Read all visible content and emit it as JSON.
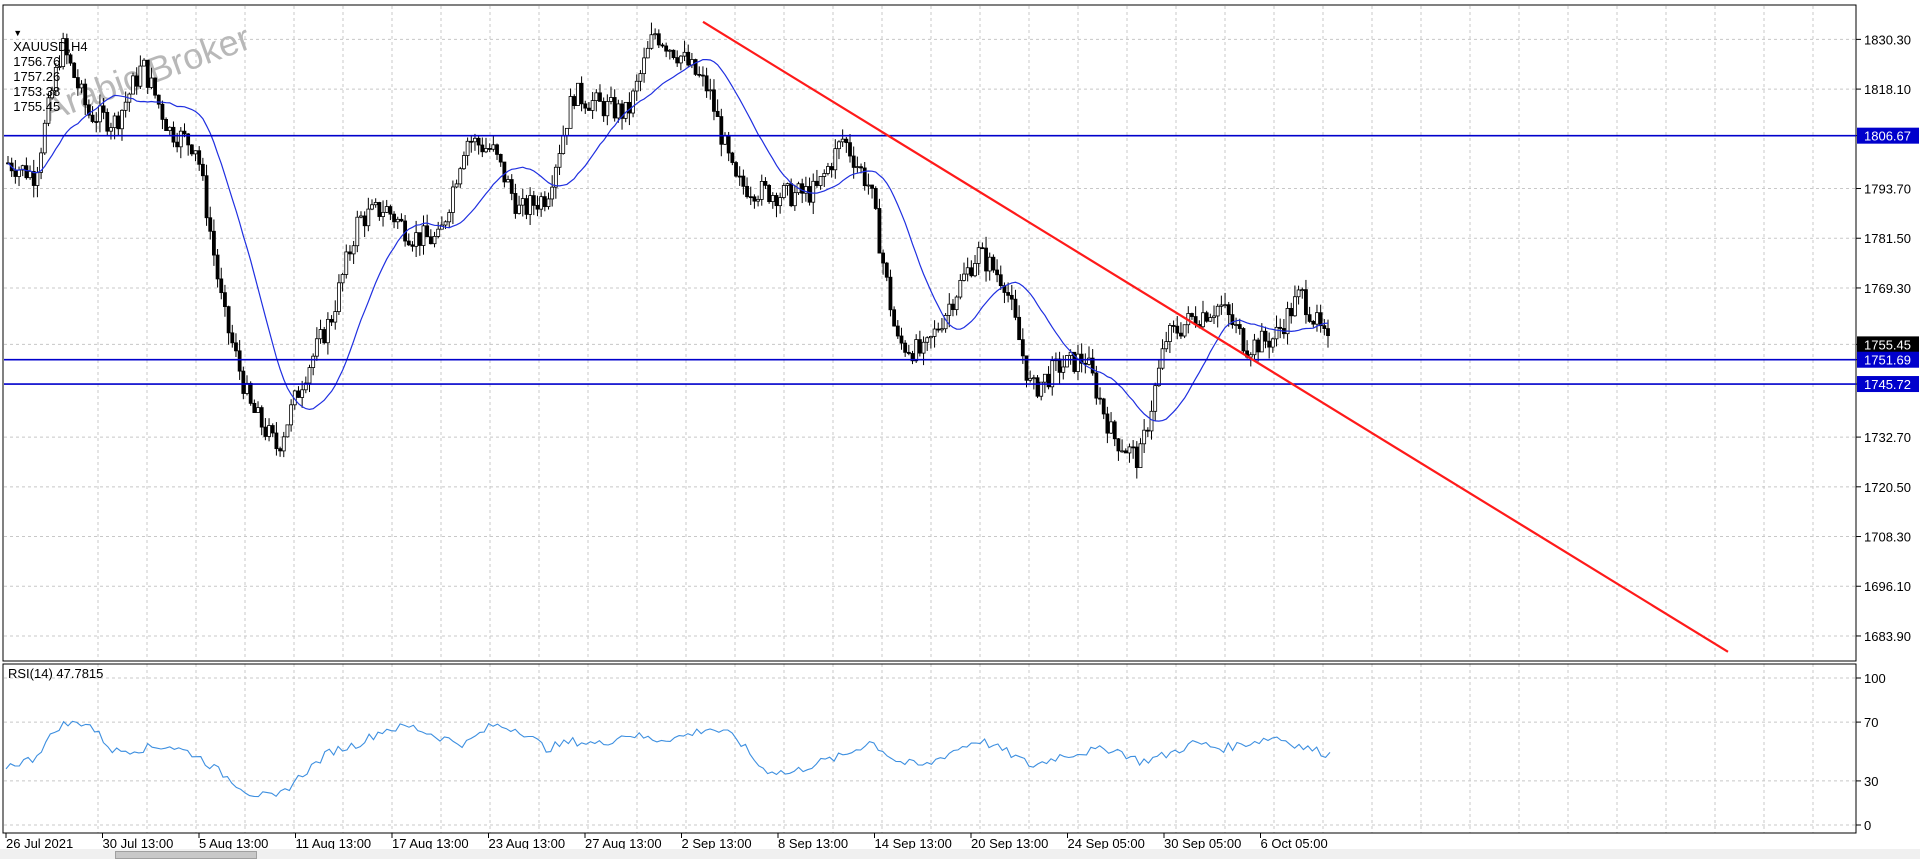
{
  "header": {
    "symbol": "XAUUSD,H4",
    "open": "1756.76",
    "high": "1757.26",
    "low": "1753.38",
    "close": "1755.45",
    "dropdown_icon": "triangle-down-icon"
  },
  "watermark": "Arabic Broker",
  "rsi_header": "RSI(14) 47.7815",
  "colors": {
    "candle": "#000000",
    "ma": "#1f2fe0",
    "hline": "#0000cc",
    "trendline": "#ff1a1a",
    "rsi": "#3d8fe0",
    "grid": "#c8c8c8",
    "price_tag_bg": "#0000cc",
    "last_price_bg": "#000000"
  },
  "chart_data": [
    {
      "type": "candlestick",
      "symbol": "XAUUSD",
      "timeframe": "H4",
      "ylim": [
        1678.0,
        1838.0
      ],
      "y_ticks": [
        "1830.30",
        "1818.10",
        "1806.67",
        "1793.70",
        "1781.50",
        "1769.30",
        "1755.45",
        "1751.69",
        "1745.72",
        "1732.70",
        "1720.50",
        "1708.30",
        "1696.10",
        "1683.90"
      ],
      "x_ticks": [
        "26 Jul 2021",
        "30 Jul 13:00",
        "5 Aug 13:00",
        "11 Aug 13:00",
        "17 Aug 13:00",
        "23 Aug 13:00",
        "27 Aug 13:00",
        "2 Sep 13:00",
        "8 Sep 13:00",
        "14 Sep 13:00",
        "20 Sep 13:00",
        "24 Sep 05:00",
        "30 Sep 05:00",
        "6 Oct 05:00"
      ],
      "horizontal_levels": [
        1806.67,
        1751.69,
        1745.72
      ],
      "last_price": 1755.45,
      "trendline": {
        "start": {
          "x": "2 Sep 2021",
          "y": 1834.6
        },
        "end": {
          "x": "~20 Oct 2021",
          "y": 1680.0
        }
      },
      "price_path": [
        {
          "x": "26 Jul 2021",
          "y": 1800
        },
        {
          "x": "28 Jul",
          "y": 1797
        },
        {
          "x": "29 Jul",
          "y": 1829
        },
        {
          "x": "30 Jul 13:00",
          "y": 1812
        },
        {
          "x": "2 Aug",
          "y": 1810
        },
        {
          "x": "3 Aug",
          "y": 1824
        },
        {
          "x": "4 Aug",
          "y": 1808
        },
        {
          "x": "5 Aug 13:00",
          "y": 1804
        },
        {
          "x": "6 Aug",
          "y": 1763
        },
        {
          "x": "9 Aug",
          "y": 1740
        },
        {
          "x": "10 Aug",
          "y": 1730
        },
        {
          "x": "11 Aug 13:00",
          "y": 1748
        },
        {
          "x": "13 Aug",
          "y": 1762
        },
        {
          "x": "16 Aug",
          "y": 1786
        },
        {
          "x": "17 Aug 13:00",
          "y": 1789
        },
        {
          "x": "19 Aug",
          "y": 1782
        },
        {
          "x": "20 Aug",
          "y": 1781
        },
        {
          "x": "23 Aug 13:00",
          "y": 1806
        },
        {
          "x": "24 Aug",
          "y": 1803
        },
        {
          "x": "25 Aug",
          "y": 1788
        },
        {
          "x": "26 Aug",
          "y": 1792
        },
        {
          "x": "27 Aug 13:00",
          "y": 1817
        },
        {
          "x": "31 Aug",
          "y": 1814
        },
        {
          "x": "1 Sep",
          "y": 1812
        },
        {
          "x": "2 Sep 13:00",
          "y": 1832
        },
        {
          "x": "3 Sep",
          "y": 1826
        },
        {
          "x": "6 Sep",
          "y": 1818
        },
        {
          "x": "7 Sep",
          "y": 1795
        },
        {
          "x": "8 Sep 13:00",
          "y": 1793
        },
        {
          "x": "10 Sep",
          "y": 1792
        },
        {
          "x": "13 Sep",
          "y": 1793
        },
        {
          "x": "14 Sep 13:00",
          "y": 1806
        },
        {
          "x": "15 Sep",
          "y": 1794
        },
        {
          "x": "16 Sep",
          "y": 1756
        },
        {
          "x": "17 Sep",
          "y": 1753
        },
        {
          "x": "20 Sep 13:00",
          "y": 1766
        },
        {
          "x": "21 Sep",
          "y": 1778
        },
        {
          "x": "22 Sep",
          "y": 1771
        },
        {
          "x": "23 Sep",
          "y": 1744
        },
        {
          "x": "24 Sep 05:00",
          "y": 1750
        },
        {
          "x": "27 Sep",
          "y": 1752
        },
        {
          "x": "28 Sep",
          "y": 1733
        },
        {
          "x": "29 Sep",
          "y": 1727
        },
        {
          "x": "30 Sep 05:00",
          "y": 1757
        },
        {
          "x": "1 Oct",
          "y": 1762
        },
        {
          "x": "4 Oct",
          "y": 1765
        },
        {
          "x": "5 Oct",
          "y": 1755
        },
        {
          "x": "6 Oct 05:00",
          "y": 1757
        },
        {
          "x": "7 Oct",
          "y": 1768
        },
        {
          "x": "8 Oct",
          "y": 1755
        }
      ]
    },
    {
      "type": "line",
      "title": "RSI(14) 47.7815",
      "ylim": [
        0,
        100
      ],
      "y_ticks": [
        "100",
        "70",
        "30",
        "0"
      ],
      "levels": [
        70,
        30
      ],
      "x_ticks": [
        "26 Jul 2021",
        "30 Jul 13:00",
        "5 Aug 13:00",
        "11 Aug 13:00",
        "17 Aug 13:00",
        "23 Aug 13:00",
        "27 Aug 13:00",
        "2 Sep 13:00",
        "8 Sep 13:00",
        "14 Sep 13:00",
        "20 Sep 13:00",
        "24 Sep 05:00",
        "30 Sep 05:00",
        "6 Oct 05:00"
      ],
      "values": [
        40,
        45,
        68,
        70,
        50,
        52,
        54,
        48,
        35,
        22,
        18,
        35,
        50,
        55,
        65,
        67,
        60,
        55,
        68,
        65,
        52,
        57,
        55,
        62,
        58,
        60,
        66,
        60,
        38,
        35,
        42,
        47,
        57,
        43,
        40,
        50,
        58,
        50,
        40,
        47,
        50,
        52,
        43,
        48,
        56,
        52,
        56,
        60,
        53,
        48
      ],
      "last_value": 47.7815
    }
  ]
}
